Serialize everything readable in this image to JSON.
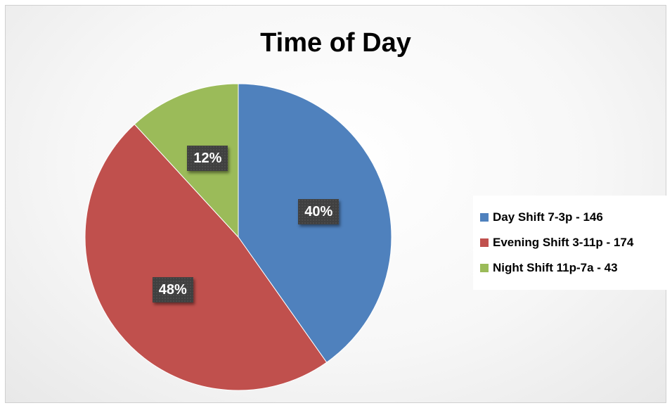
{
  "chart_data": {
    "type": "pie",
    "title": "Time of Day",
    "categories": [
      "Day Shift 7-3p - 146",
      "Evening Shift 3-11p - 174",
      "Night Shift 11p-7a - 43"
    ],
    "values": [
      146,
      174,
      43
    ],
    "percent_labels": [
      "40%",
      "48%",
      "12%"
    ],
    "colors": [
      "#4f81bd",
      "#c0504d",
      "#9bbb59"
    ],
    "start_angle_deg": 0,
    "direction": "clockwise",
    "legend_position": "right"
  }
}
